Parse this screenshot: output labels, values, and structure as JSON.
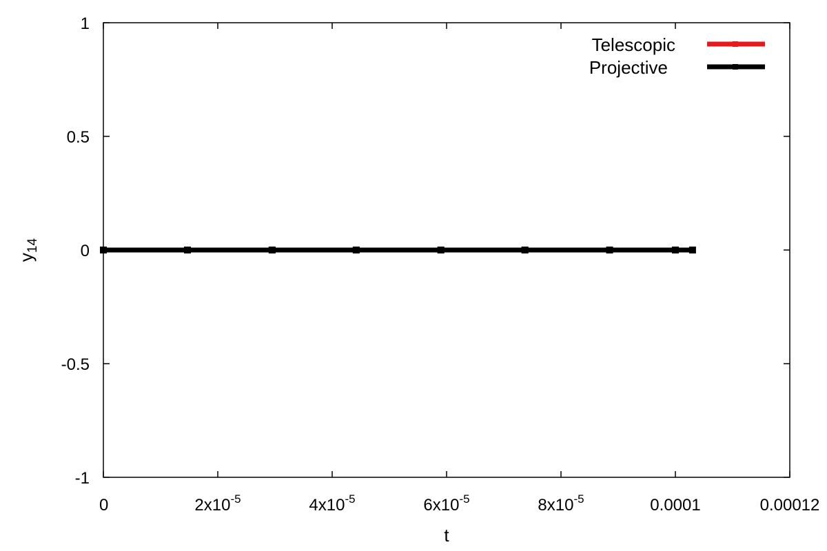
{
  "chart_data": {
    "type": "line",
    "xlabel": "t",
    "ylabel": "y",
    "ylabel_subscript": "14",
    "xlim": [
      0,
      0.00012
    ],
    "ylim": [
      -1,
      1
    ],
    "x_ticks": [
      {
        "value": 0,
        "label": "0"
      },
      {
        "value": 2e-05,
        "base": "2x10",
        "exp": "-5"
      },
      {
        "value": 4e-05,
        "base": "4x10",
        "exp": "-5"
      },
      {
        "value": 6e-05,
        "base": "6x10",
        "exp": "-5"
      },
      {
        "value": 8e-05,
        "base": "8x10",
        "exp": "-5"
      },
      {
        "value": 0.0001,
        "label": "0.0001"
      },
      {
        "value": 0.00012,
        "label": "0.00012"
      }
    ],
    "y_ticks": [
      {
        "value": -1,
        "label": "-1"
      },
      {
        "value": -0.5,
        "label": "-0.5"
      },
      {
        "value": 0,
        "label": "0"
      },
      {
        "value": 0.5,
        "label": "0.5"
      },
      {
        "value": 1,
        "label": "1"
      }
    ],
    "legend_position": "top-right",
    "grid": false,
    "series": [
      {
        "name": "Telescopic",
        "color": "#e41a1c",
        "x": [
          0,
          1.47e-05,
          2.95e-05,
          4.42e-05,
          5.9e-05,
          7.37e-05,
          8.85e-05,
          0.0001
        ],
        "y": [
          0,
          0,
          0,
          0,
          0,
          0,
          0,
          0
        ]
      },
      {
        "name": "Projective",
        "color": "#000000",
        "x": [
          0,
          1.47e-05,
          2.95e-05,
          4.42e-05,
          5.9e-05,
          7.37e-05,
          8.85e-05,
          0.0001,
          0.000103
        ],
        "y": [
          0,
          0,
          0,
          0,
          0,
          0,
          0,
          0,
          0
        ]
      }
    ]
  }
}
